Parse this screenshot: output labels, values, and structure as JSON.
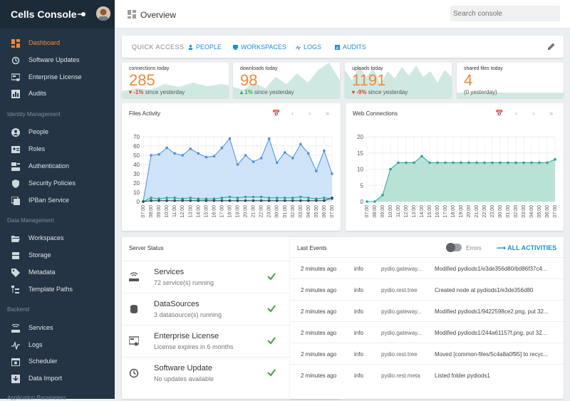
{
  "sidebar": {
    "title": "Cells Console",
    "items": [
      {
        "label": "Dashboard",
        "icon": "dashboard-icon",
        "active": true
      },
      {
        "label": "Software Updates",
        "icon": "refresh-icon"
      },
      {
        "label": "Enterprise License",
        "icon": "license-icon"
      },
      {
        "label": "Audits",
        "icon": "chart-bars-icon"
      },
      {
        "label": "People",
        "icon": "person-icon"
      },
      {
        "label": "Roles",
        "icon": "id-card-icon"
      },
      {
        "label": "Authentication",
        "icon": "authentication-icon"
      },
      {
        "label": "Security Policies",
        "icon": "shield-icon"
      },
      {
        "label": "IPBan Service",
        "icon": "ipban-icon"
      },
      {
        "label": "Workspaces",
        "icon": "folder-open-icon"
      },
      {
        "label": "Storage",
        "icon": "storage-icon"
      },
      {
        "label": "Metadata",
        "icon": "tag-icon"
      },
      {
        "label": "Template Paths",
        "icon": "tree-icon"
      },
      {
        "label": "Services",
        "icon": "services-icon"
      },
      {
        "label": "Logs",
        "icon": "pulse-icon"
      },
      {
        "label": "Scheduler",
        "icon": "scheduler-icon"
      },
      {
        "label": "Data Import",
        "icon": "import-icon"
      }
    ],
    "sections": [
      "Identity Management",
      "Data Management",
      "Backend",
      "Application Parameters"
    ]
  },
  "header": {
    "title": "Overview",
    "search_placeholder": "Search console"
  },
  "quick_access": {
    "label": "QUICK ACCESS",
    "links": [
      "PEOPLE",
      "WORKSPACES",
      "LOGS",
      "AUDITS"
    ]
  },
  "stats": [
    {
      "label": "connections today",
      "value": "285",
      "trend": "-1%",
      "trend_text": "since yesterday",
      "dir": "down"
    },
    {
      "label": "downloads today",
      "value": "98",
      "trend": "1%",
      "trend_text": "since yesterday",
      "dir": "up"
    },
    {
      "label": "uploads today",
      "value": "1191",
      "trend": "-9%",
      "trend_text": "since yesterday",
      "dir": "down"
    },
    {
      "label": "shared files today",
      "value": "4",
      "trend": "",
      "trend_text": "(0 yesterday)",
      "dir": "none"
    }
  ],
  "charts": {
    "files_title": "Files Activity",
    "web_title": "Web Connections"
  },
  "chart_data": [
    {
      "type": "area",
      "title": "Files Activity",
      "x": [
        "07:00",
        "08:00",
        "09:00",
        "10:00",
        "11:00",
        "12:00",
        "13:00",
        "14:00",
        "15:00",
        "16:00",
        "17:00",
        "18:00",
        "19:00",
        "20:00",
        "21:00",
        "22:00",
        "23:00",
        "00:00",
        "01:00",
        "02:00",
        "03:00",
        "04:00",
        "05:00",
        "06:00",
        "07:00"
      ],
      "ylim": [
        0,
        70
      ],
      "yticks": [
        0,
        10,
        20,
        30,
        40,
        50,
        60,
        70
      ],
      "series": [
        {
          "values": [
            0,
            50,
            51,
            58,
            52,
            50,
            57,
            52,
            48,
            49,
            58,
            68,
            40,
            50,
            43,
            47,
            68,
            42,
            53,
            47,
            62,
            52,
            33,
            55,
            30
          ],
          "color": "#4a90d9"
        },
        {
          "values": [
            0,
            4,
            3,
            4,
            4,
            3,
            4,
            3,
            3,
            3,
            4,
            5,
            4,
            5,
            5,
            5,
            4,
            4,
            4,
            4,
            5,
            4,
            3,
            4,
            3
          ],
          "color": "#26a69a"
        },
        {
          "values": [
            0,
            1,
            1,
            1,
            1,
            1,
            1,
            1,
            1,
            1,
            1,
            1,
            1,
            1,
            1,
            1,
            1,
            1,
            1,
            1,
            1,
            1,
            1,
            1,
            4
          ],
          "color": "#37474f"
        }
      ]
    },
    {
      "type": "area",
      "title": "Web Connections",
      "x": [
        "07:00",
        "08:00",
        "09:00",
        "10:00",
        "11:00",
        "12:00",
        "13:00",
        "14:00",
        "15:00",
        "16:00",
        "17:00",
        "18:00",
        "19:00",
        "20:00",
        "21:00",
        "22:00",
        "23:00",
        "00:00",
        "01:00",
        "02:00",
        "03:00",
        "04:00",
        "05:00",
        "06:00",
        "07:00"
      ],
      "ylim": [
        0,
        20
      ],
      "yticks": [
        0,
        5,
        10,
        15,
        20
      ],
      "series": [
        {
          "values": [
            0,
            0,
            2,
            10,
            12,
            12,
            12,
            14,
            12,
            12,
            12,
            12,
            12,
            12,
            12,
            12,
            12,
            12,
            12,
            12,
            12,
            12,
            12,
            12,
            13
          ],
          "color": "#26a69a"
        }
      ]
    }
  ],
  "server_status": {
    "title": "Server Status",
    "items": [
      {
        "name": "Services",
        "detail": "72 service(s) running",
        "icon": "router-icon"
      },
      {
        "name": "DataSources",
        "detail": "3 datasource(s) running",
        "icon": "database-icon"
      },
      {
        "name": "Enterprise License",
        "detail": "License expires in 6 months",
        "icon": "license-icon"
      },
      {
        "name": "Software Update",
        "detail": "No updates available",
        "icon": "refresh-icon"
      }
    ]
  },
  "events": {
    "title": "Last Events",
    "errors_label": "Errors",
    "all_activities": "ALL ACTIVITIES",
    "rows": [
      {
        "time": "2 minutes ago",
        "level": "info",
        "service": "pydio.gateway...",
        "message": "Modified pydiods1/e3de356d80/bd86f37c4..."
      },
      {
        "time": "2 minutes ago",
        "level": "info",
        "service": "pydio.rest.tree",
        "message": "Created node at pydiods1/e3de356d80"
      },
      {
        "time": "2 minutes ago",
        "level": "info",
        "service": "pydio.gateway...",
        "message": "Modified pydiods1/9422598ce2.png, put 32..."
      },
      {
        "time": "2 minutes ago",
        "level": "info",
        "service": "pydio.gateway...",
        "message": "Modified pydiods1/244a61157f.png, put 32..."
      },
      {
        "time": "2 minutes ago",
        "level": "info",
        "service": "pydio.rest.tree",
        "message": "Moved [common-files/5c4a8a0f95] to recyc..."
      },
      {
        "time": "2 minutes ago",
        "level": "info",
        "service": "pydio.rest.meta",
        "message": "Listed folder pydiods1"
      }
    ]
  }
}
